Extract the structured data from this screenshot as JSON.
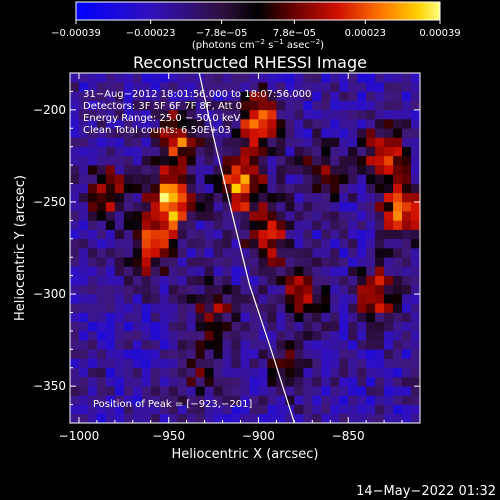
{
  "chart_data": {
    "type": "heatmap",
    "title": "Reconstructed RHESSI Image",
    "xlabel": "Heliocentric X (arcsec)",
    "ylabel": "Heliocentric Y (arcsec)",
    "xlim": [
      -1005,
      -810
    ],
    "ylim": [
      -370,
      -180
    ],
    "xticks": [
      -1000,
      -950,
      -900,
      -850
    ],
    "xtick_labels": [
      "−1000",
      "−950",
      "−900",
      "−850"
    ],
    "yticks": [
      -350,
      -300,
      -250,
      -200
    ],
    "ytick_labels": [
      "−350",
      "−300",
      "−250",
      "−200"
    ],
    "colorbar": {
      "range": [
        -0.00039,
        0.00039
      ],
      "tick_values": [
        -0.00039,
        -0.00023,
        -7.8e-05,
        7.8e-05,
        0.00023,
        0.00039
      ],
      "tick_labels": [
        "−0.00039",
        "−0.00023",
        "−7.8e−05",
        "7.8e−05",
        "0.00023",
        "0.00039"
      ],
      "unit_parts": [
        "(photons cm",
        "−2",
        " s",
        "−1",
        " asec",
        "−2",
        ")"
      ]
    },
    "info_lines": [
      "31−Aug−2012 18:01:56.000 to 18:07:56.000",
      "Detectors: 3F 5F 6F 7F 8F, Att 0",
      "Energy Range: 25.0 − 50.0 keV",
      "Clean    Total counts: 6.50E+03"
    ],
    "peak_label": "Position of Peak = [−923,−201]",
    "peak_position": [
      -923,
      -201
    ],
    "limb_points": [
      [
        -933,
        -180
      ],
      [
        -925,
        -215
      ],
      [
        -915,
        -255
      ],
      [
        -905,
        -295
      ],
      [
        -893,
        -330
      ],
      [
        -880,
        -370
      ]
    ],
    "sources": [
      {
        "x": -950,
        "y": -250,
        "peak": 0.00039
      },
      {
        "x": -945,
        "y": -215,
        "peak": 0.0003
      },
      {
        "x": -960,
        "y": -275,
        "peak": 0.00025
      },
      {
        "x": -910,
        "y": -240,
        "peak": 0.00037
      },
      {
        "x": -900,
        "y": -205,
        "peak": 0.00033
      },
      {
        "x": -895,
        "y": -270,
        "peak": 0.00028
      },
      {
        "x": -875,
        "y": -300,
        "peak": 0.00022
      },
      {
        "x": -830,
        "y": -225,
        "peak": 0.00028
      },
      {
        "x": -820,
        "y": -255,
        "peak": 0.00033
      },
      {
        "x": -835,
        "y": -300,
        "peak": 0.00025
      },
      {
        "x": -985,
        "y": -245,
        "peak": 0.00022
      },
      {
        "x": -865,
        "y": -235,
        "peak": 0.0002
      },
      {
        "x": -925,
        "y": -310,
        "peak": 0.00018
      },
      {
        "x": -935,
        "y": -340,
        "peak": 0.00015
      },
      {
        "x": -885,
        "y": -340,
        "peak": 0.00014
      }
    ]
  },
  "footer": {
    "timestamp": "14−May−2022 01:32"
  },
  "colors": {
    "background": "#000000",
    "foreground": "#ffffff",
    "limb_line": "#ffffff"
  }
}
